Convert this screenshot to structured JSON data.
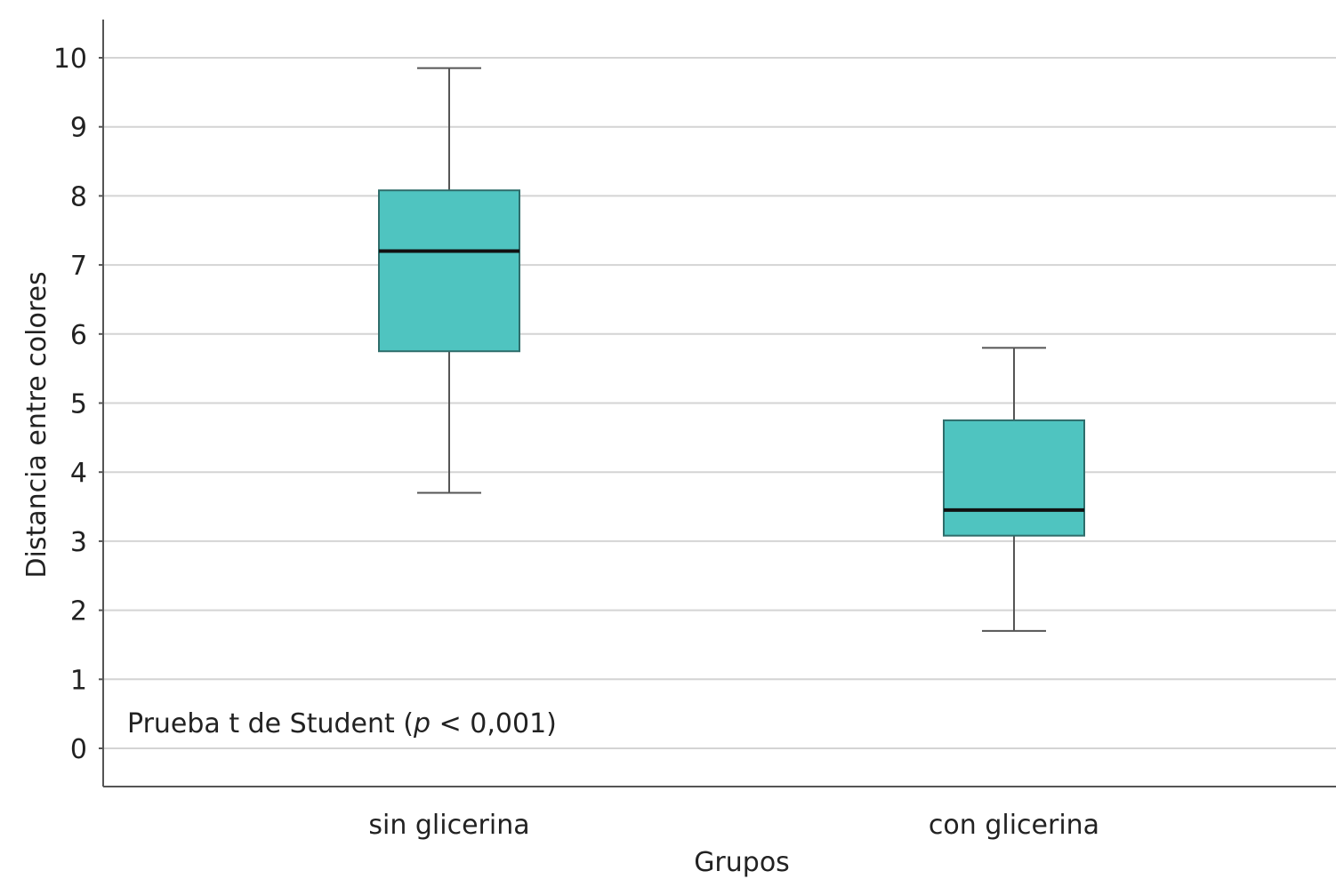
{
  "chart_data": {
    "type": "box",
    "title": "",
    "xlabel": "Grupos",
    "ylabel": "Distancia entre colores",
    "ylim": [
      -0.55,
      10.55
    ],
    "yticks": [
      0,
      1,
      2,
      3,
      4,
      5,
      6,
      7,
      8,
      9,
      10
    ],
    "categories": [
      "sin glicerina",
      "con glicerina"
    ],
    "boxes": [
      {
        "category": "sin glicerina",
        "whisker_low": 3.7,
        "q1": 5.75,
        "median": 7.2,
        "q3": 8.08,
        "whisker_high": 9.85
      },
      {
        "category": "con glicerina",
        "whisker_low": 1.7,
        "q1": 3.08,
        "median": 3.45,
        "q3": 4.75,
        "whisker_high": 5.8
      }
    ],
    "annotation": {
      "text_before": "Prueba t de Student (",
      "text_italic": "p",
      "text_after": " < 0,001)"
    },
    "grid": true,
    "legend": "none",
    "colors": {
      "box_fill": "#4fc4c0",
      "box_stroke": "#2f6d6b",
      "median": "#111111",
      "whisker": "#555555",
      "grid": "#d4d4d4",
      "axis": "#555555"
    }
  }
}
